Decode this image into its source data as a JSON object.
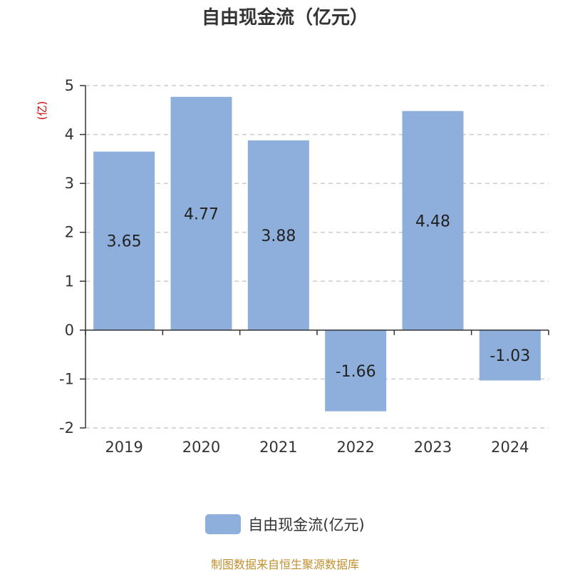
{
  "colors": {
    "bar": "#8eaedb",
    "axis": "#333333",
    "grid": "#cccccc",
    "unit": "#cc0000",
    "source": "#c09030"
  },
  "source_note": "制图数据来自恒生聚源数据库",
  "chart_data": {
    "type": "bar",
    "title": "自由现金流（亿元）",
    "ylabel": "(亿)",
    "categories": [
      "2019",
      "2020",
      "2021",
      "2022",
      "2023",
      "2024"
    ],
    "series": [
      {
        "name": "自由现金流(亿元)",
        "values": [
          3.65,
          4.77,
          3.88,
          -1.66,
          4.48,
          -1.03
        ]
      }
    ],
    "ylim": [
      -2,
      5
    ],
    "yticks": [
      "5",
      "4",
      "3",
      "2",
      "1",
      "0",
      "-1",
      "-2"
    ],
    "grid": true,
    "legend": "bottom"
  }
}
